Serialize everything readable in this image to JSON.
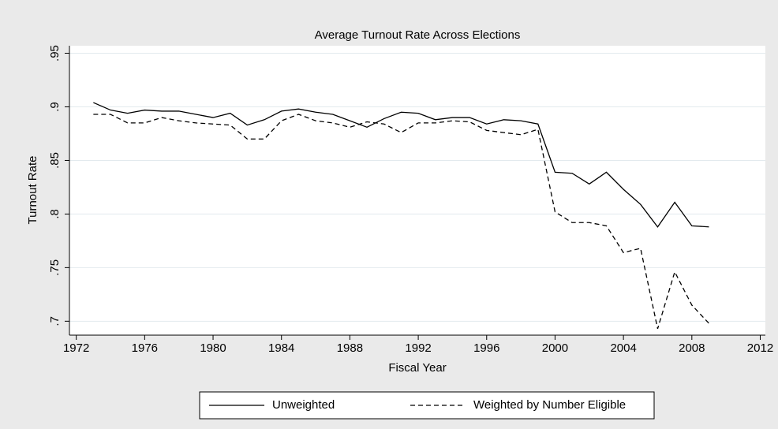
{
  "chart_data": {
    "type": "line",
    "title": "Average Turnout Rate Across Elections",
    "x_label": "Fiscal Year",
    "y_label": "Turnout Rate",
    "x": [
      1973,
      1974,
      1975,
      1976,
      1977,
      1978,
      1979,
      1980,
      1981,
      1982,
      1983,
      1984,
      1985,
      1986,
      1987,
      1988,
      1989,
      1990,
      1991,
      1992,
      1993,
      1994,
      1995,
      1996,
      1997,
      1998,
      1999,
      2000,
      2001,
      2002,
      2003,
      2004,
      2005,
      2006,
      2007,
      2008,
      2009
    ],
    "series": [
      {
        "name": "Unweighted",
        "color": "#000000",
        "line_style": "solid",
        "values": [
          0.904,
          0.897,
          0.894,
          0.897,
          0.896,
          0.896,
          0.893,
          0.89,
          0.894,
          0.883,
          0.888,
          0.896,
          0.898,
          0.895,
          0.893,
          0.887,
          0.881,
          0.889,
          0.895,
          0.894,
          0.888,
          0.89,
          0.89,
          0.884,
          0.888,
          0.887,
          0.884,
          0.839,
          0.838,
          0.828,
          0.839,
          0.823,
          0.809,
          0.788,
          0.811,
          0.789,
          0.788
        ]
      },
      {
        "name": "Weighted by Number Eligible",
        "color": "#000000",
        "line_style": "dashed",
        "values": [
          0.893,
          0.893,
          0.885,
          0.885,
          0.89,
          0.887,
          0.885,
          0.884,
          0.883,
          0.87,
          0.87,
          0.887,
          0.893,
          0.887,
          0.885,
          0.881,
          0.886,
          0.884,
          0.876,
          0.885,
          0.885,
          0.887,
          0.886,
          0.878,
          0.876,
          0.874,
          0.879,
          0.802,
          0.792,
          0.792,
          0.789,
          0.764,
          0.768,
          0.693,
          0.746,
          0.715,
          0.698
        ]
      }
    ],
    "xlim": [
      1971.6,
      2012.3
    ],
    "xticks": [
      1972,
      1976,
      1980,
      1984,
      1988,
      1992,
      1996,
      2000,
      2004,
      2008,
      2012
    ],
    "ylim": [
      0.687,
      0.957
    ],
    "yticks": [
      {
        "value": 0.7,
        "label": ".7"
      },
      {
        "value": 0.75,
        "label": ".75"
      },
      {
        "value": 0.8,
        "label": ".8"
      },
      {
        "value": 0.85,
        "label": ".85"
      },
      {
        "value": 0.9,
        "label": ".9"
      },
      {
        "value": 0.95,
        "label": ".95"
      }
    ],
    "grid": true
  }
}
